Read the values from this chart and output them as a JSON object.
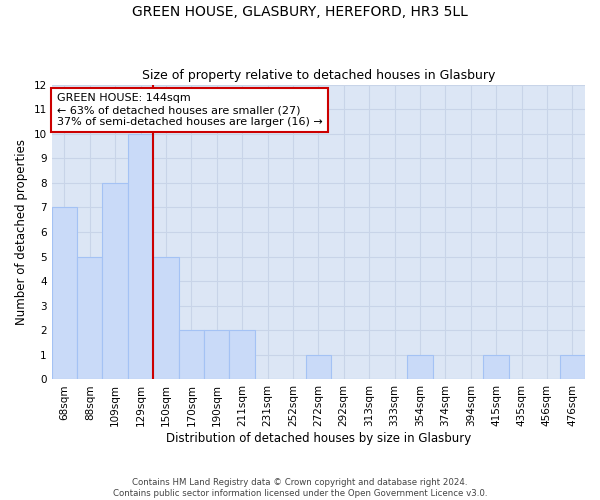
{
  "title": "GREEN HOUSE, GLASBURY, HEREFORD, HR3 5LL",
  "subtitle": "Size of property relative to detached houses in Glasbury",
  "xlabel": "Distribution of detached houses by size in Glasbury",
  "ylabel": "Number of detached properties",
  "footer_line1": "Contains HM Land Registry data © Crown copyright and database right 2024.",
  "footer_line2": "Contains public sector information licensed under the Open Government Licence v3.0.",
  "categories": [
    "68sqm",
    "88sqm",
    "109sqm",
    "129sqm",
    "150sqm",
    "170sqm",
    "190sqm",
    "211sqm",
    "231sqm",
    "252sqm",
    "272sqm",
    "292sqm",
    "313sqm",
    "333sqm",
    "354sqm",
    "374sqm",
    "394sqm",
    "415sqm",
    "435sqm",
    "456sqm",
    "476sqm"
  ],
  "values": [
    7,
    5,
    8,
    10,
    5,
    2,
    2,
    2,
    0,
    0,
    1,
    0,
    0,
    0,
    1,
    0,
    0,
    1,
    0,
    0,
    1
  ],
  "bar_color": "#c9daf8",
  "bar_edge_color": "#a4c2f4",
  "bar_linewidth": 0.8,
  "vline_index": 4,
  "vline_color": "#cc0000",
  "vline_linewidth": 1.5,
  "annotation_line1": "GREEN HOUSE: 144sqm",
  "annotation_line2": "← 63% of detached houses are smaller (27)",
  "annotation_line3": "37% of semi-detached houses are larger (16) →",
  "annotation_box_color": "#ffffff",
  "annotation_box_edge": "#cc0000",
  "annotation_fontsize": 8,
  "ylim": [
    0,
    12
  ],
  "yticks": [
    0,
    1,
    2,
    3,
    4,
    5,
    6,
    7,
    8,
    9,
    10,
    11,
    12
  ],
  "grid_color": "#c8d4e8",
  "background_color": "#dce6f5",
  "title_fontsize": 10,
  "subtitle_fontsize": 9,
  "xlabel_fontsize": 8.5,
  "ylabel_fontsize": 8.5,
  "tick_fontsize": 7.5
}
